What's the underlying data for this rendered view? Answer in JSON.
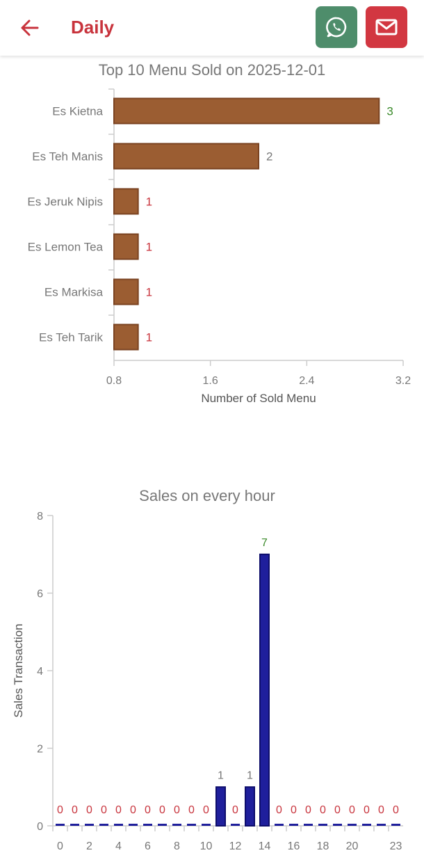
{
  "header": {
    "title": "Daily",
    "colors": {
      "accent": "#c8333c",
      "whatsapp": "#4e8d6b",
      "mail": "#d23741"
    },
    "icons": {
      "back": "arrow-left-icon",
      "whatsapp": "whatsapp-icon",
      "mail": "mail-icon"
    }
  },
  "chart_data": [
    {
      "type": "bar",
      "orientation": "horizontal",
      "title": "Top 10 Menu Sold on 2025-12-01",
      "xlabel": "Number of Sold Menu",
      "ylabel": "",
      "categories": [
        "Es Kietna",
        "Es Teh Manis",
        "Es Jeruk Nipis",
        "Es Lemon Tea",
        "Es Markisa",
        "Es Teh Tarik"
      ],
      "values": [
        3,
        2,
        1,
        1,
        1,
        1
      ],
      "xlim": [
        0.8,
        3.2
      ],
      "xticks": [
        "0.8",
        "1.6",
        "2.4",
        "3.2"
      ],
      "bar_color": "#9b5d32",
      "label_colors": {
        "max": "#3b8a2a",
        "mid": "#777777",
        "low": "#c8333c"
      },
      "grid": false
    },
    {
      "type": "bar",
      "title": "Sales on every hour",
      "xlabel": "",
      "ylabel": "Sales Transaction",
      "x": [
        0,
        1,
        2,
        3,
        4,
        5,
        6,
        7,
        8,
        9,
        10,
        11,
        12,
        13,
        14,
        15,
        16,
        17,
        18,
        19,
        20,
        21,
        22,
        23
      ],
      "xtick_labels": [
        "0",
        "2",
        "4",
        "6",
        "8",
        "10",
        "12",
        "14",
        "16",
        "18",
        "20",
        "23"
      ],
      "values": [
        0,
        0,
        0,
        0,
        0,
        0,
        0,
        0,
        0,
        0,
        0,
        1,
        0,
        1,
        7,
        0,
        0,
        0,
        0,
        0,
        0,
        0,
        0,
        0
      ],
      "ylim": [
        0,
        8
      ],
      "yticks": [
        "0",
        "2",
        "4",
        "6",
        "8"
      ],
      "bar_color": "#1f1f9c",
      "grid": false
    }
  ]
}
